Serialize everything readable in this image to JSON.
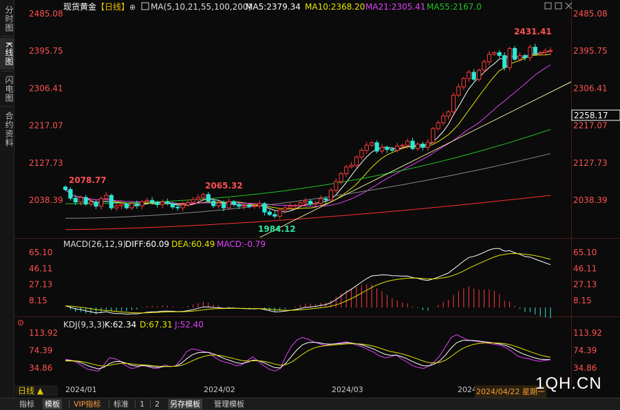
{
  "sidebar": {
    "tabs": [
      {
        "label": "分时图"
      },
      {
        "label": "K线图",
        "active": true
      },
      {
        "label": "闪电图"
      },
      {
        "label": "合约资料"
      }
    ]
  },
  "bottom_bar": {
    "tabs": [
      {
        "label": "指标"
      },
      {
        "label": "模板",
        "active": true
      },
      {
        "label": "VIP指标"
      },
      {
        "label": "标准"
      },
      {
        "label": "1"
      },
      {
        "label": "2"
      },
      {
        "label": "另存模板",
        "active": true
      },
      {
        "label": "管理模板"
      }
    ]
  },
  "period_label": "日线 ▲",
  "watermark": "1QH.CN",
  "date_flag": "2024/04/22 星期一",
  "colors": {
    "up": "#ff3b3b",
    "down": "#2ee6d6",
    "ma5": "#ffffff",
    "ma10": "#e6e600",
    "ma21": "#e040fb",
    "ma55": "#22c322",
    "ma100": "#888888",
    "ma200": "#ff3030",
    "diff": "#ffffff",
    "dea": "#e6e600",
    "k": "#ffffff",
    "d": "#e6e600",
    "j": "#e040fb",
    "axis_red": "#ff5050",
    "trend": "#f5f5a0"
  },
  "chart_data": [
    {
      "type": "candlestick",
      "title": "现货黄金",
      "period_tag": "【日线】",
      "legend": {
        "ma_name": "MA(5,10,21,55,100,200)",
        "ma5": "MA5:2379.34",
        "ma10": "MA10:2368.20",
        "ma21": "MA21:2305.41",
        "ma55": "MA55:2167.0"
      },
      "y_ticks": [
        "2485.08",
        "2395.75",
        "2306.41",
        "2217.07",
        "2127.73",
        "2038.39"
      ],
      "y_range": [
        2000.0,
        2485.08
      ],
      "price_tag": "2258.17",
      "annotations": [
        {
          "label": "2078.77",
          "value": 2078.77
        },
        {
          "label": "2065.32",
          "value": 2065.32
        },
        {
          "label": "1984.12",
          "value": 1984.12
        },
        {
          "label": "2431.41",
          "value": 2431.41
        }
      ],
      "x_labels": [
        "2024/01",
        "2024/02",
        "2024/03",
        "2024"
      ],
      "closes": [
        2064,
        2043,
        2034,
        2045,
        2029,
        2034,
        2024,
        2042,
        2050,
        2020,
        2025,
        2029,
        2020,
        2030,
        2025,
        2035,
        2038,
        2033,
        2028,
        2034,
        2030,
        2022,
        2020,
        2027,
        2033,
        2040,
        2045,
        2052,
        2036,
        2025,
        2032,
        2020,
        2035,
        2028,
        2024,
        2026,
        2023,
        2025,
        2030,
        2010,
        2004,
        2000,
        2015,
        2020,
        2024,
        2026,
        2032,
        2036,
        2029,
        2031,
        2042,
        2039,
        2062,
        2083,
        2102,
        2118,
        2122,
        2142,
        2158,
        2170,
        2176,
        2156,
        2165,
        2160,
        2158,
        2168,
        2170,
        2180,
        2162,
        2173,
        2165,
        2177,
        2210,
        2224,
        2240,
        2250,
        2290,
        2310,
        2330,
        2345,
        2328,
        2350,
        2370,
        2388,
        2392,
        2385,
        2356,
        2402,
        2376,
        2385,
        2380,
        2405,
        2390,
        2392,
        2396,
        2397
      ]
    },
    {
      "type": "macd",
      "legend": {
        "name": "MACD(26,12,9)",
        "diff": "DIFF:60.09",
        "dea": "DEA:60.49",
        "macd": "MACD:-0.79"
      },
      "y_ticks": [
        "65.10",
        "46.11",
        "27.13",
        "8.15"
      ],
      "y_range": [
        -12.0,
        72.0
      ]
    },
    {
      "type": "kdj",
      "legend": {
        "name": "KDJ(9,3,3)",
        "k": "K:62.34",
        "d": "D:67.31",
        "j": "J:52.40"
      },
      "y_ticks": [
        "113.92",
        "74.39",
        "34.86"
      ],
      "y_range": [
        10.0,
        130.0
      ],
      "j_series": [
        55,
        52,
        48,
        40,
        32,
        30,
        28,
        42,
        58,
        56,
        50,
        40,
        34,
        36,
        42,
        38,
        34,
        35,
        42,
        38,
        40,
        54,
        72,
        78,
        76,
        72,
        70,
        60,
        52,
        48,
        45,
        40,
        42,
        52,
        60,
        50,
        40,
        32,
        28,
        34,
        62,
        84,
        98,
        104,
        100,
        94,
        90,
        86,
        88,
        90,
        92,
        94,
        90,
        86,
        82,
        76,
        70,
        62,
        58,
        60,
        65,
        55,
        48,
        40,
        36,
        34,
        40,
        50,
        64,
        84,
        104,
        110,
        104,
        98,
        96,
        94,
        92,
        90,
        88,
        86,
        80,
        72,
        62,
        58,
        56,
        52,
        50,
        52,
        54
      ]
    }
  ]
}
